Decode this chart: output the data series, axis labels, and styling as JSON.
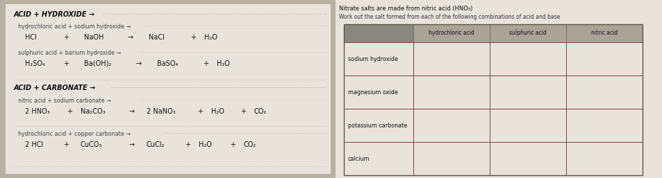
{
  "bg_color": "#b8b0a0",
  "paper_color": "#e8e4dc",
  "left_panel": {
    "section1_title": "ACID + HYDROXIDE →",
    "eq1_word": "hydrochloric acid + sodium hydroxide →",
    "eq1_formula_parts": [
      [
        "HCl",
        0
      ],
      [
        "+",
        55
      ],
      [
        "NaOH",
        85
      ],
      [
        "→",
        148
      ],
      [
        "NaCl",
        178
      ],
      [
        "+",
        238
      ],
      [
        "H₂O",
        258
      ]
    ],
    "eq2_word": "sulphuric acid + barium hydroxide →",
    "eq2_formula_parts": [
      [
        "H₂SO₄",
        0
      ],
      [
        "+",
        55
      ],
      [
        "Ba(OH)₂",
        85
      ],
      [
        "→",
        160
      ],
      [
        "BaSO₄",
        190
      ],
      [
        "+",
        256
      ],
      [
        "H₂O",
        276
      ]
    ],
    "section2_title": "ACID + CARBONATE →",
    "eq3_word": "nitric acid + sodium carbonate →",
    "eq3_formula_parts": [
      [
        "2 HNO₃",
        0
      ],
      [
        "+",
        60
      ],
      [
        "Na₂CO₃",
        80
      ],
      [
        "→",
        150
      ],
      [
        "2 NaNO₃",
        175
      ],
      [
        "+",
        248
      ],
      [
        "H₂O",
        268
      ],
      [
        "+",
        310
      ],
      [
        "CO₂",
        330
      ]
    ],
    "eq4_word": "hydrochloric acid + copper carbonate →",
    "eq4_formula_parts": [
      [
        "2 HCl",
        0
      ],
      [
        "+",
        55
      ],
      [
        "CuCO₃",
        80
      ],
      [
        "→",
        150
      ],
      [
        "CuCl₂",
        175
      ],
      [
        "+",
        230
      ],
      [
        "H₂O",
        250
      ],
      [
        "+",
        295
      ],
      [
        "CO₂",
        315
      ]
    ]
  },
  "right_panel": {
    "note_line1": "Nitrate salts are made from nitric acid (HNO₃)",
    "note_line2": "Work out the salt formed from each of the following combinations of acid and base",
    "col_headers": [
      "hydrochloric acid",
      "sulphuric acid",
      "nitric acid"
    ],
    "row_headers": [
      "sodium hydroxide",
      "magnesium oxide",
      "potassium carbonate",
      "calcium"
    ],
    "header_bg": "#888880",
    "cell_bg": "#e8e4dc",
    "border_color": "#7a3030"
  }
}
